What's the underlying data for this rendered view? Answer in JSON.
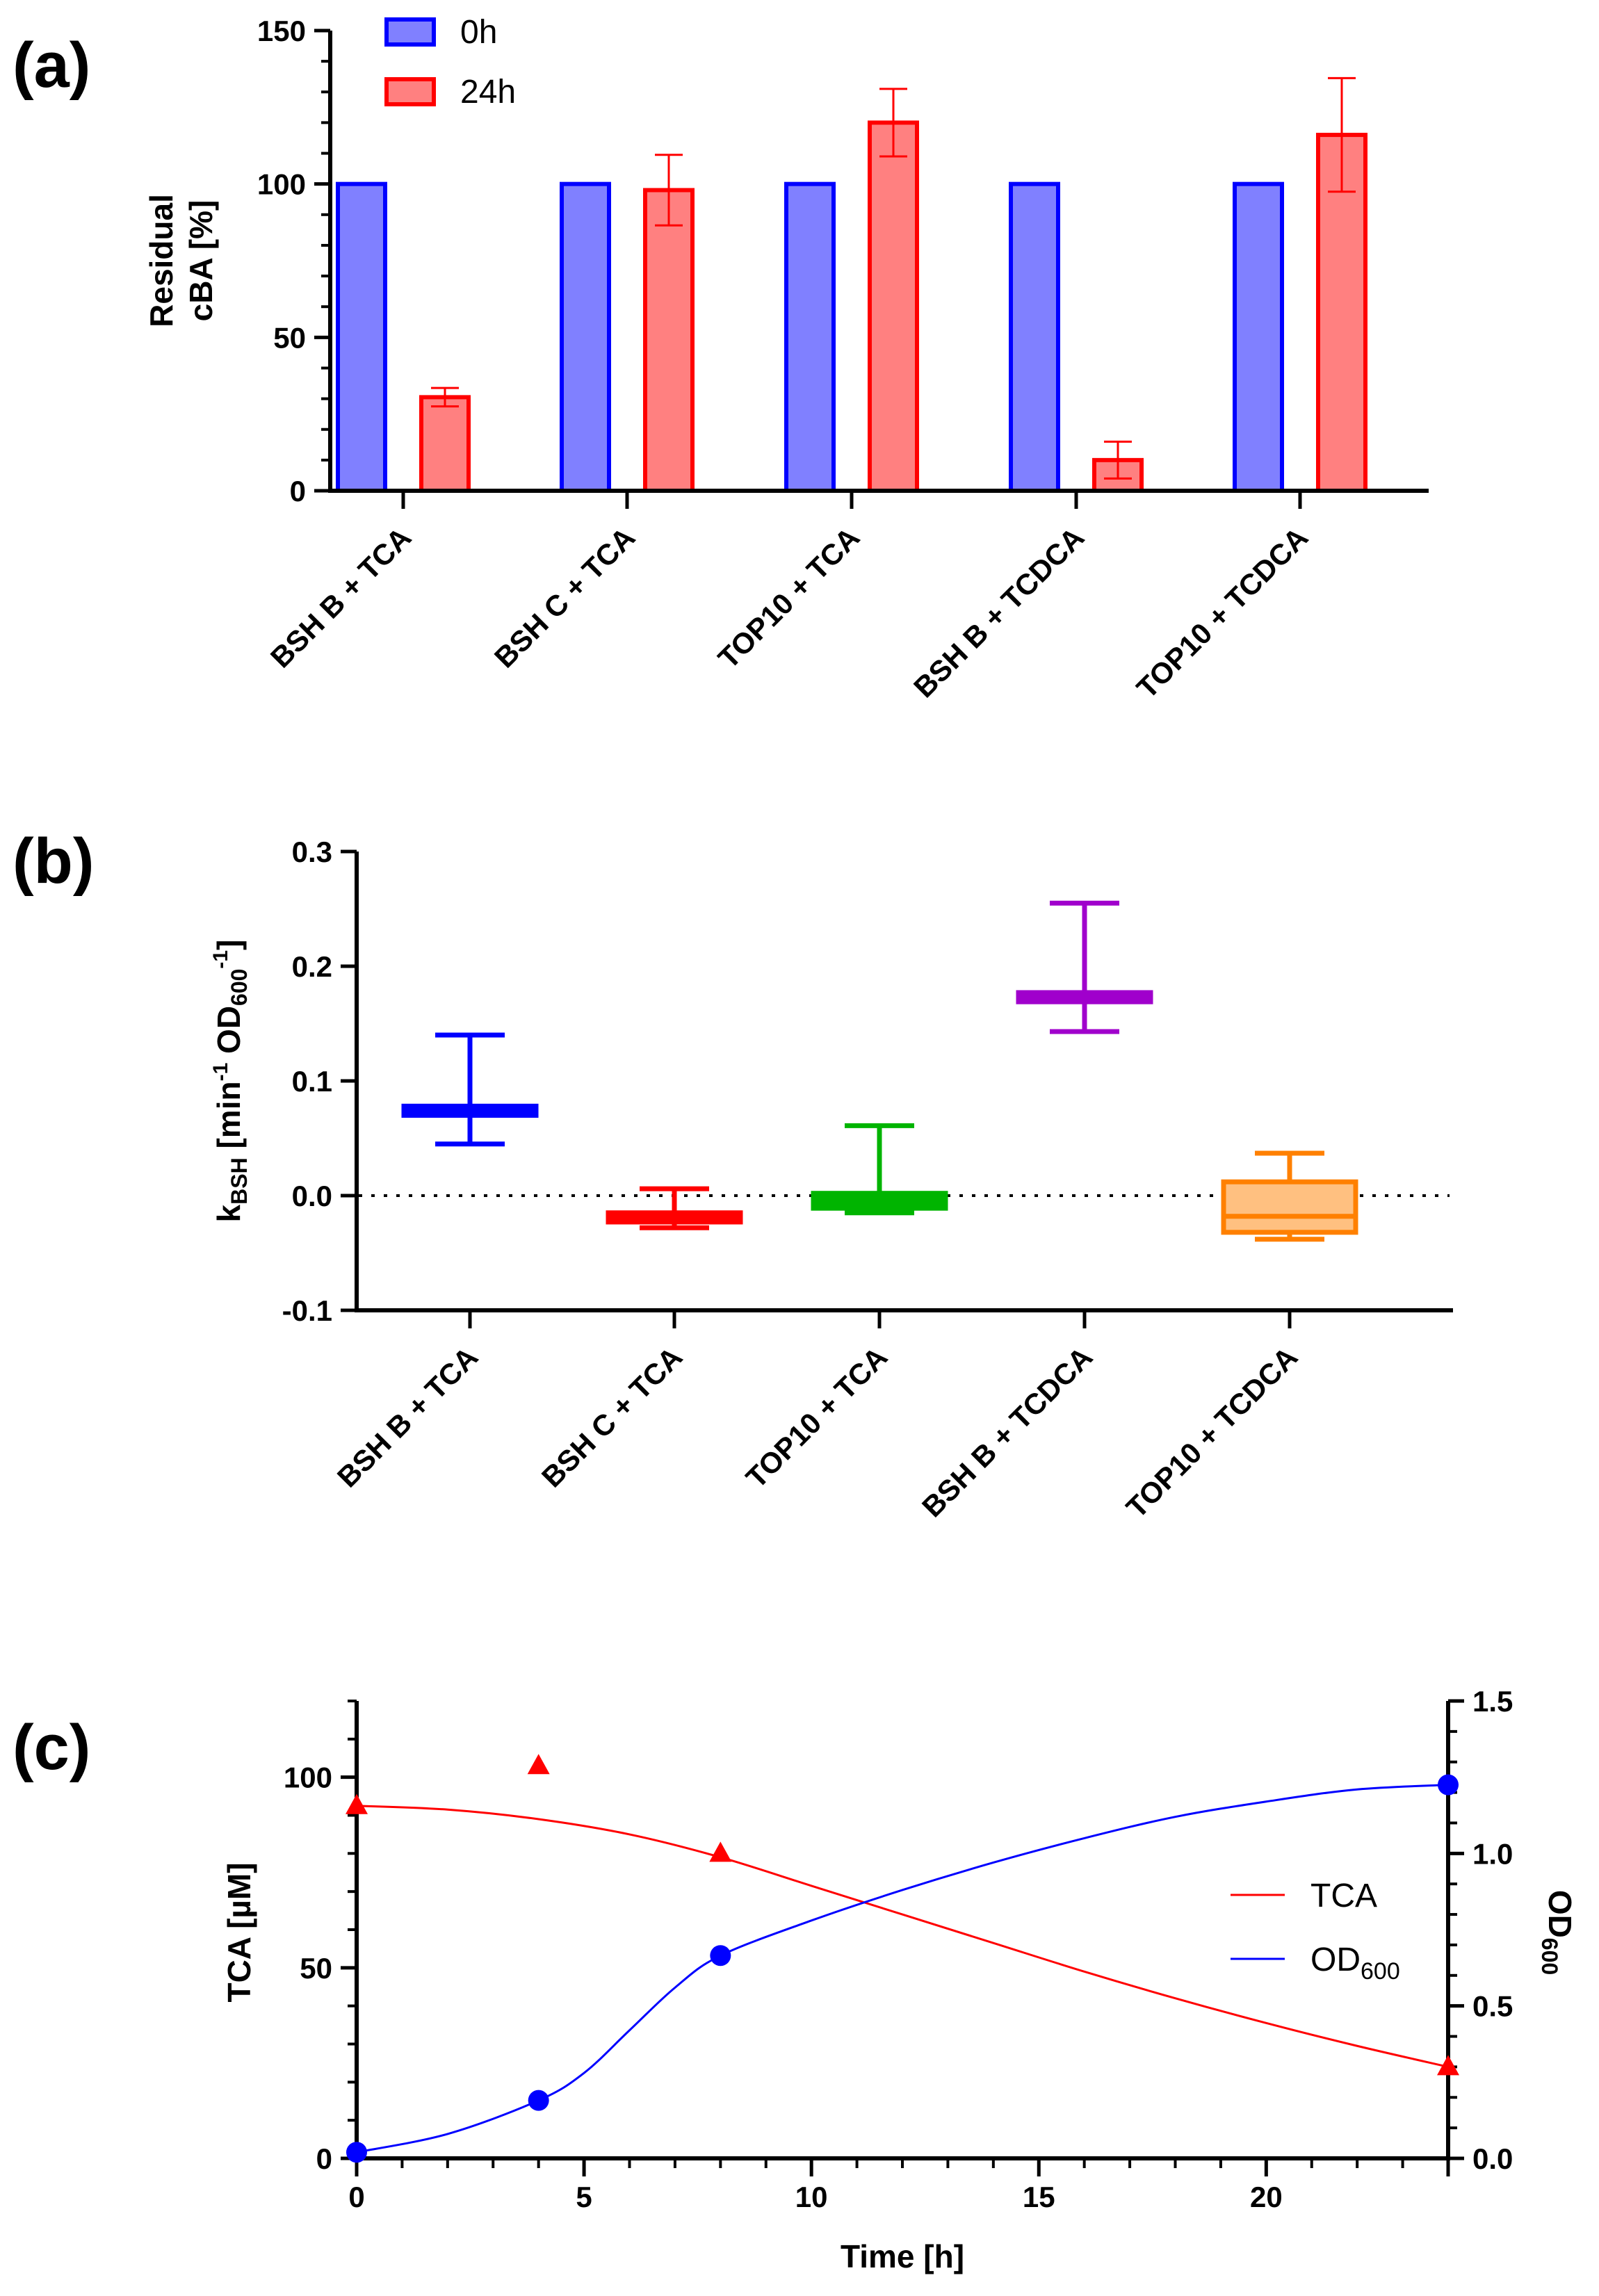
{
  "chart_data": [
    {
      "panel": "(a)",
      "type": "bar",
      "title": "",
      "xlabel": "",
      "ylabel_line1": "Residual",
      "ylabel_line2": "cBA [%]",
      "ylim": [
        0,
        150
      ],
      "yticks": [
        "0",
        "50",
        "100",
        "150"
      ],
      "categories": [
        "BSH B + TCA",
        "BSH C + TCA",
        "TOP10 + TCA",
        "BSH B + TCDCA",
        "TOP10 + TCDCA"
      ],
      "series": [
        {
          "name": "0h",
          "color": "#0000ff",
          "fill": "#8080ff",
          "values": [
            100,
            100,
            100,
            100,
            100
          ],
          "errors": [
            0,
            0,
            0,
            0,
            0
          ]
        },
        {
          "name": "24h",
          "color": "#ff0000",
          "fill": "#ff8080",
          "values": [
            30.5,
            98,
            120,
            10,
            116
          ],
          "errors": [
            3,
            11.5,
            11,
            6,
            18.5
          ]
        }
      ],
      "legend": "top"
    },
    {
      "panel": "(b)",
      "type": "box",
      "title": "",
      "xlabel": "",
      "ylabel_main": "k",
      "ylabel_sub": "BSH",
      "ylabel_open": " [min",
      "ylabel_sup1": "-1",
      "ylabel_mid": " OD",
      "ylabel_sub2": "600",
      "ylabel_sup2": "-1",
      "ylabel_close": "]",
      "ylim": [
        -0.1,
        0.3
      ],
      "yticks": [
        "-0.1",
        "0.0",
        "0.1",
        "0.2",
        "0.3"
      ],
      "reference_line": 0,
      "categories": [
        "BSH B + TCA",
        "BSH C + TCA",
        "TOP10 + TCA",
        "BSH B + TCDCA",
        "TOP10 + TCDCA"
      ],
      "boxes": [
        {
          "min": 0.045,
          "q1": 0.07,
          "median": 0.074,
          "q3": 0.078,
          "max": 0.14,
          "color": "#0000ff"
        },
        {
          "min": -0.028,
          "q1": -0.023,
          "median": -0.019,
          "q3": -0.015,
          "max": 0.006,
          "color": "#ff0000"
        },
        {
          "min": -0.015,
          "q1": -0.011,
          "median": -0.005,
          "q3": 0.002,
          "max": 0.061,
          "color": "#00b400"
        },
        {
          "min": 0.143,
          "q1": 0.169,
          "median": 0.173,
          "q3": 0.177,
          "max": 0.255,
          "color": "#a000cc"
        },
        {
          "min": -0.038,
          "q1": -0.032,
          "median": -0.018,
          "q3": 0.012,
          "max": 0.037,
          "color": "#ff8000",
          "fill": "#ffc080"
        }
      ]
    },
    {
      "panel": "(c)",
      "type": "line",
      "title": "",
      "xlabel": "Time [h]",
      "ylabel_left": "TCA [µM]",
      "ylabel_right_main": "OD",
      "ylabel_right_sub": "600",
      "xlim": [
        0,
        24
      ],
      "xticks": [
        "0",
        "5",
        "10",
        "15",
        "20"
      ],
      "ylim_left": [
        0,
        120
      ],
      "yticks_left": [
        "0",
        "50",
        "100"
      ],
      "ylim_right": [
        0,
        1.5
      ],
      "yticks_right": [
        "0.0",
        "0.5",
        "1.0",
        "1.5"
      ],
      "series": [
        {
          "name": "TCA",
          "axis": "left",
          "color": "#ff0000",
          "marker": "triangle",
          "x": [
            0,
            4,
            8,
            24
          ],
          "y": [
            92.5,
            103,
            80,
            24
          ],
          "fit_x": [
            0,
            2,
            4,
            6,
            8,
            10,
            12,
            14,
            16,
            18,
            20,
            22,
            24
          ],
          "fit_y": [
            92.5,
            91.5,
            89,
            85,
            79,
            71.5,
            64,
            56.5,
            49,
            42,
            35.5,
            29.5,
            24
          ]
        },
        {
          "name": "OD",
          "name_sub": "600",
          "axis": "right",
          "color": "#0000ff",
          "marker": "circle",
          "x": [
            0,
            4,
            8,
            24
          ],
          "y": [
            0.02,
            0.19,
            0.665,
            1.225
          ],
          "fit_x": [
            0,
            2,
            4,
            5,
            6,
            7,
            8,
            10,
            12,
            14,
            16,
            18,
            20,
            22,
            24
          ],
          "fit_y": [
            0.02,
            0.08,
            0.19,
            0.28,
            0.42,
            0.56,
            0.665,
            0.78,
            0.88,
            0.97,
            1.05,
            1.12,
            1.17,
            1.21,
            1.225
          ]
        }
      ],
      "legend": "right"
    }
  ]
}
